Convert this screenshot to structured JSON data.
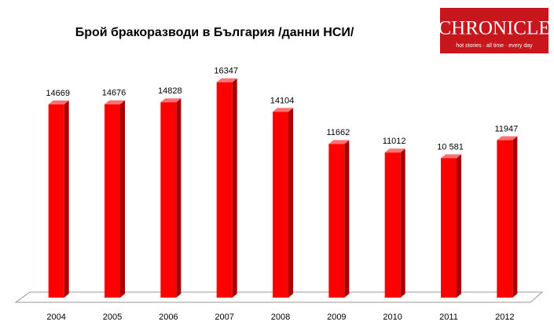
{
  "chart_data": {
    "type": "bar3d",
    "title": "Брой бракоразводи в България /данни НСИ/",
    "categories": [
      "2004",
      "2005",
      "2006",
      "2007",
      "2008",
      "2009",
      "2010",
      "2011",
      "2012"
    ],
    "values": [
      14669,
      14676,
      14828,
      16347,
      14104,
      11662,
      11012,
      10581,
      11947
    ],
    "value_labels": [
      "14669",
      "14676",
      "14828",
      "16347",
      "14104",
      "11662",
      "11012",
      "10 581",
      "11947"
    ],
    "color": "#ff0000",
    "ylim": [
      0,
      18000
    ]
  },
  "logo": {
    "name": "CHRONICLE",
    "tagline": "hot stories · all time · every day"
  }
}
